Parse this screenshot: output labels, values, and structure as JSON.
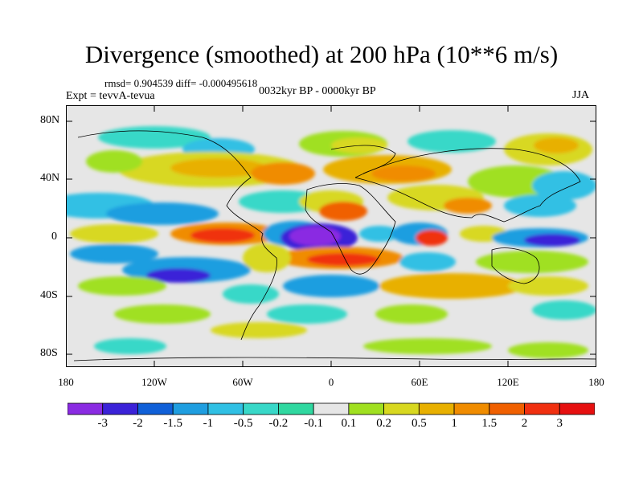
{
  "title": "Divergence (smoothed) at 200 hPa (10**6 m/s)",
  "stats": "rmsd= 0.904539 diff= -0.000495618",
  "experiment": "Expt = tevvA-tevua",
  "period": "0032kyr BP - 0000kyr BP",
  "season": "JJA",
  "yticks": [
    "80N",
    "40N",
    "0",
    "40S",
    "80S"
  ],
  "xticks": [
    "180",
    "120W",
    "60W",
    "0",
    "60E",
    "120E",
    "180"
  ],
  "colorbar": {
    "labels": [
      "-3",
      "-2",
      "-1.5",
      "-1",
      "-0.5",
      "-0.2",
      "-0.1",
      "0.1",
      "0.2",
      "0.5",
      "1",
      "1.5",
      "2",
      "3"
    ],
    "colors": [
      "#8a2be2",
      "#3b22d8",
      "#1060d8",
      "#1f9ee0",
      "#30c0e4",
      "#38d8c8",
      "#30d8a0",
      "#e6e6e6",
      "#a0e020",
      "#d8d820",
      "#e8b000",
      "#f08c00",
      "#f06000",
      "#f03010",
      "#e61010"
    ]
  }
}
